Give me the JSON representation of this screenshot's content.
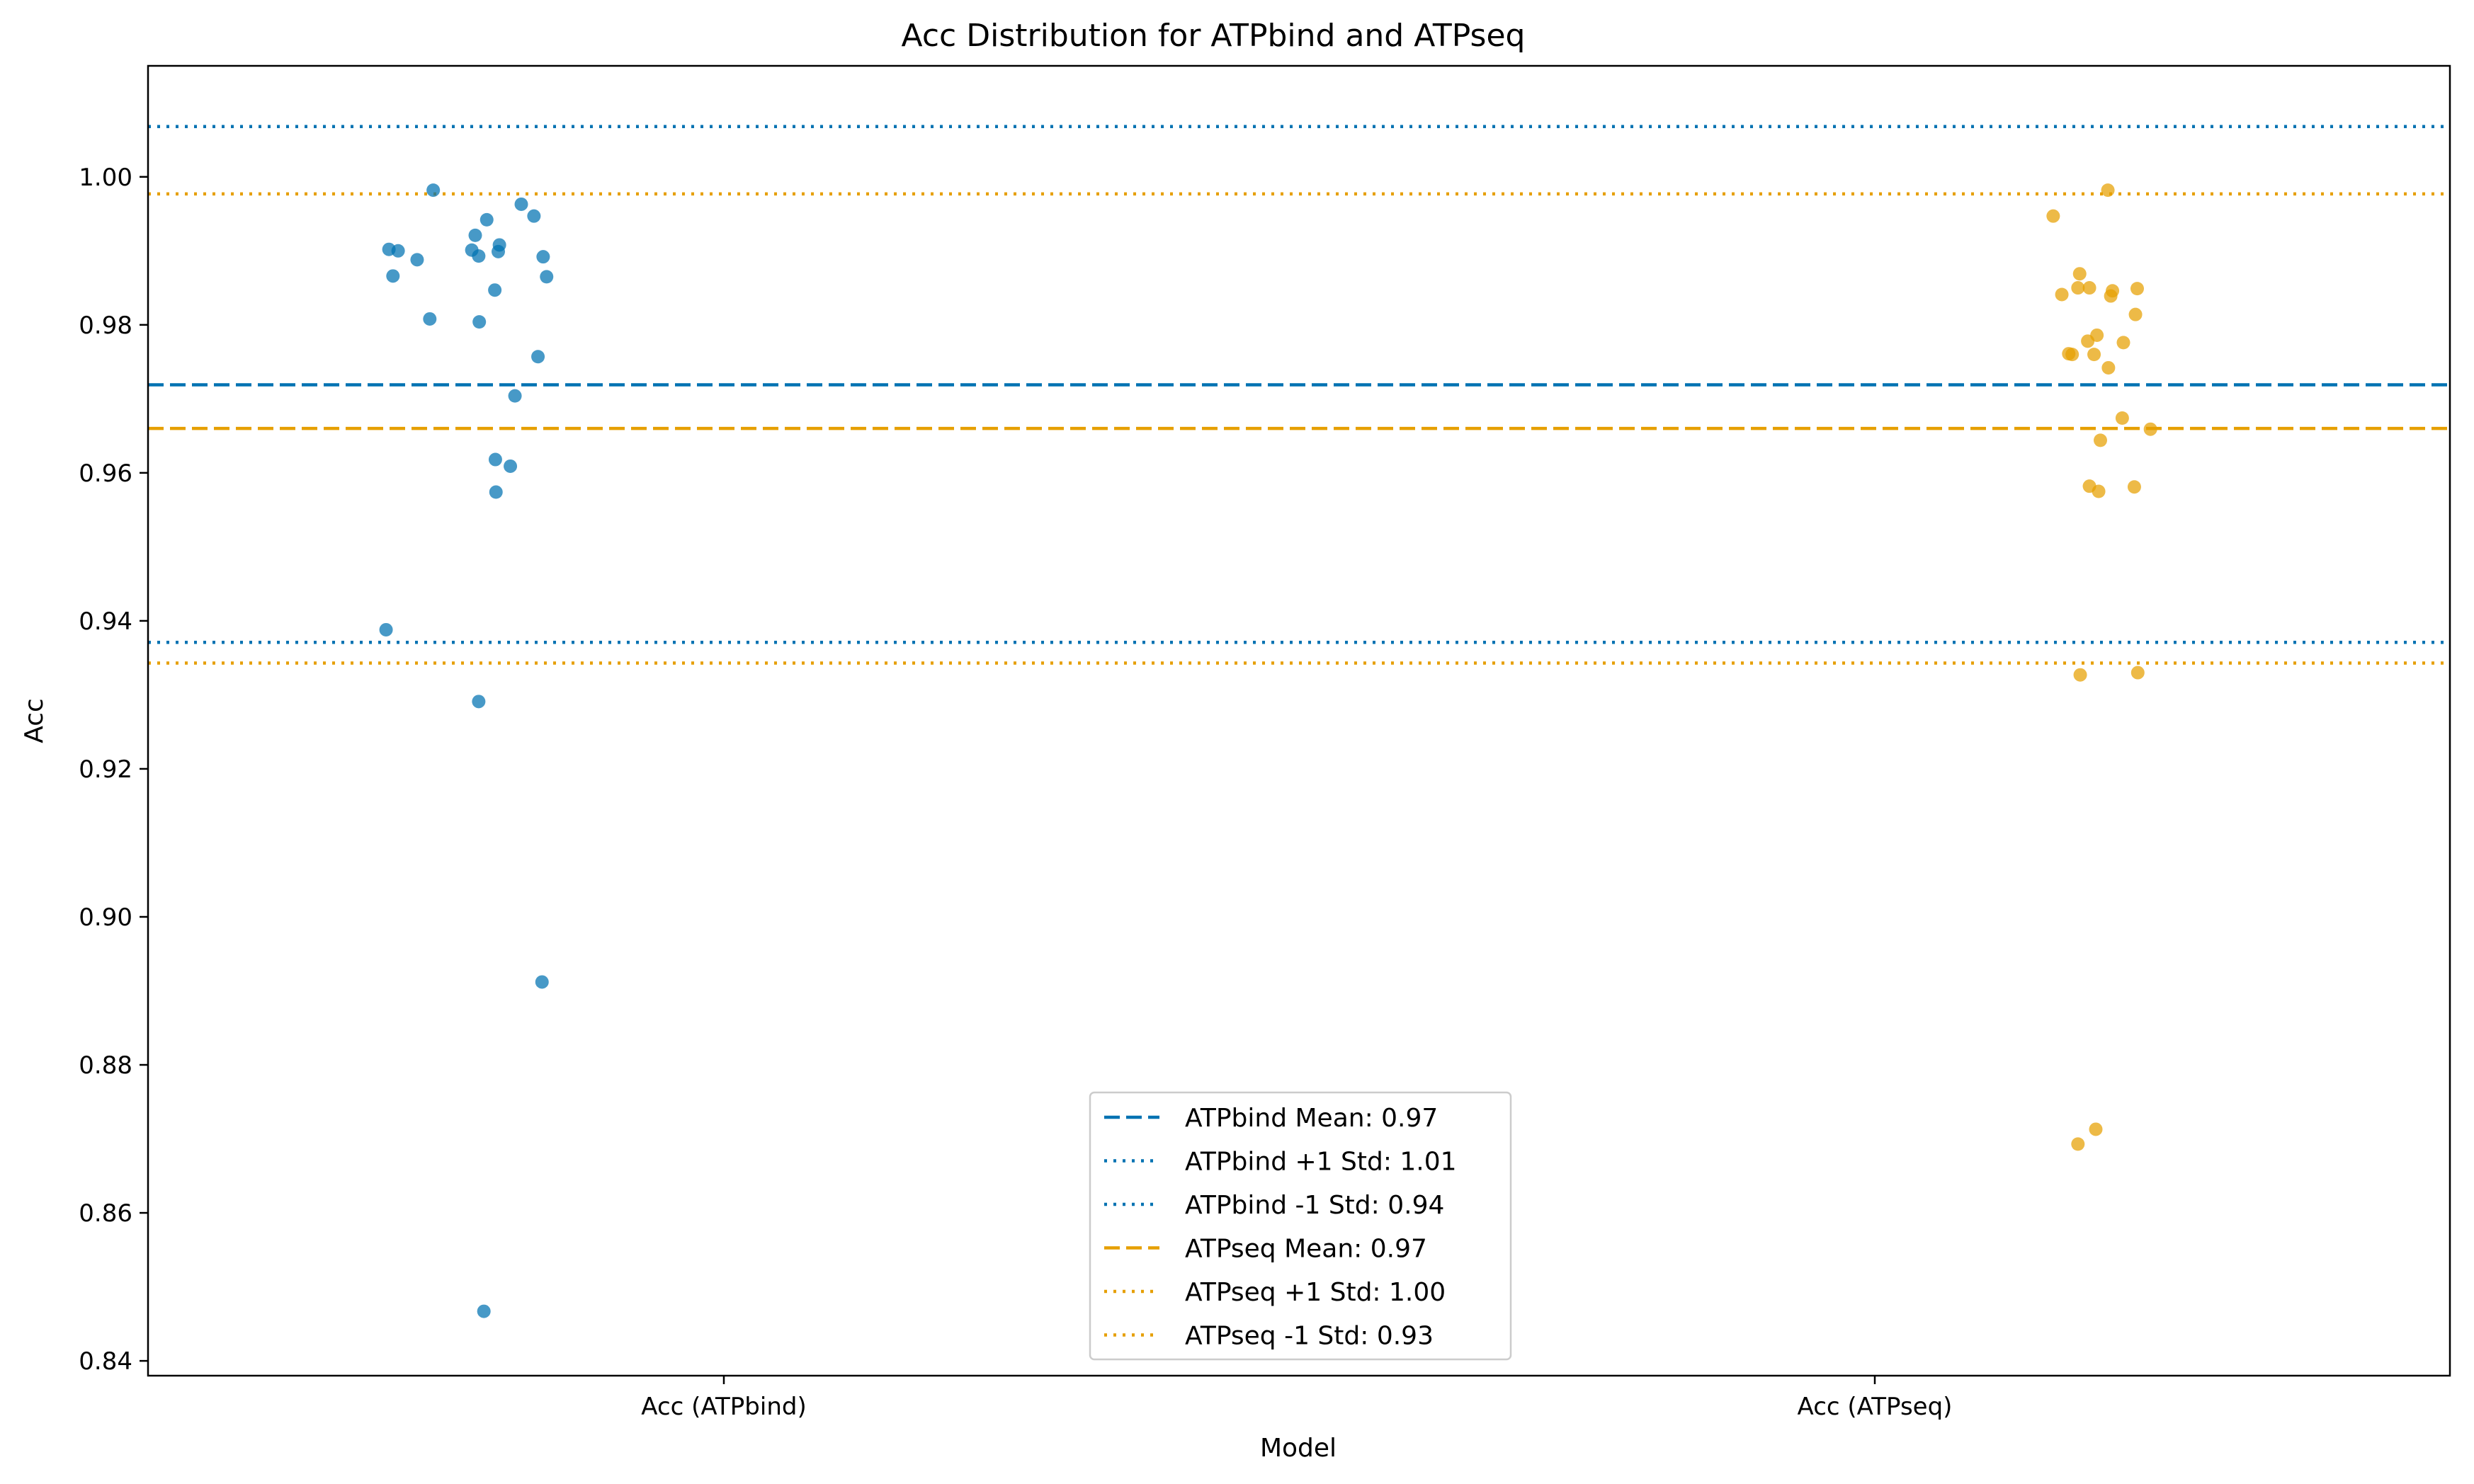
{
  "chart_data": {
    "type": "scatter",
    "title": "Acc Distribution for ATPbind and ATPseq",
    "xlabel": "Model",
    "ylabel": "Acc",
    "categories": [
      "Acc (ATPbind)",
      "Acc (ATPseq)"
    ],
    "ylim": [
      0.838,
      1.015
    ],
    "yticks": [
      0.84,
      0.86,
      0.88,
      0.9,
      0.92,
      0.94,
      0.96,
      0.98,
      1.0
    ],
    "ytick_labels": [
      "0.84",
      "0.86",
      "0.88",
      "0.90",
      "0.92",
      "0.94",
      "0.96",
      "0.98",
      "1.00"
    ],
    "grid": false,
    "legend_position": "bottom-center",
    "series": [
      {
        "category": "Acc (ATPbind)",
        "color": "#0072b2",
        "points": [
          {
            "x": -0.505,
            "y": 0.9982
          },
          {
            "x": -0.352,
            "y": 0.9963
          },
          {
            "x": -0.33,
            "y": 0.9947
          },
          {
            "x": -0.412,
            "y": 0.9942
          },
          {
            "x": -0.432,
            "y": 0.9921
          },
          {
            "x": -0.582,
            "y": 0.9902
          },
          {
            "x": -0.566,
            "y": 0.99
          },
          {
            "x": -0.438,
            "y": 0.9901
          },
          {
            "x": -0.39,
            "y": 0.9908
          },
          {
            "x": -0.392,
            "y": 0.9899
          },
          {
            "x": -0.426,
            "y": 0.9893
          },
          {
            "x": -0.533,
            "y": 0.9888
          },
          {
            "x": -0.314,
            "y": 0.9892
          },
          {
            "x": -0.575,
            "y": 0.9866
          },
          {
            "x": -0.308,
            "y": 0.9865
          },
          {
            "x": -0.398,
            "y": 0.9847
          },
          {
            "x": -0.511,
            "y": 0.9808
          },
          {
            "x": -0.425,
            "y": 0.9804
          },
          {
            "x": -0.323,
            "y": 0.9757
          },
          {
            "x": -0.363,
            "y": 0.9704
          },
          {
            "x": -0.397,
            "y": 0.9618
          },
          {
            "x": -0.371,
            "y": 0.9609
          },
          {
            "x": -0.396,
            "y": 0.9574
          },
          {
            "x": -0.587,
            "y": 0.9388
          },
          {
            "x": -0.426,
            "y": 0.9291
          },
          {
            "x": -0.316,
            "y": 0.8912
          },
          {
            "x": -0.417,
            "y": 0.8467
          }
        ]
      },
      {
        "category": "Acc (ATPseq)",
        "color": "#e69f00",
        "points": [
          {
            "x": 0.405,
            "y": 0.9982
          },
          {
            "x": 0.31,
            "y": 0.9947
          },
          {
            "x": 0.356,
            "y": 0.9869
          },
          {
            "x": 0.325,
            "y": 0.9841
          },
          {
            "x": 0.353,
            "y": 0.985
          },
          {
            "x": 0.373,
            "y": 0.985
          },
          {
            "x": 0.456,
            "y": 0.9849
          },
          {
            "x": 0.413,
            "y": 0.9846
          },
          {
            "x": 0.41,
            "y": 0.9839
          },
          {
            "x": 0.453,
            "y": 0.9814
          },
          {
            "x": 0.386,
            "y": 0.9786
          },
          {
            "x": 0.37,
            "y": 0.9778
          },
          {
            "x": 0.432,
            "y": 0.9776
          },
          {
            "x": 0.337,
            "y": 0.9761
          },
          {
            "x": 0.343,
            "y": 0.976
          },
          {
            "x": 0.381,
            "y": 0.976
          },
          {
            "x": 0.406,
            "y": 0.9742
          },
          {
            "x": 0.43,
            "y": 0.9674
          },
          {
            "x": 0.479,
            "y": 0.9659
          },
          {
            "x": 0.392,
            "y": 0.9644
          },
          {
            "x": 0.373,
            "y": 0.9582
          },
          {
            "x": 0.451,
            "y": 0.9581
          },
          {
            "x": 0.389,
            "y": 0.9575
          },
          {
            "x": 0.357,
            "y": 0.9327
          },
          {
            "x": 0.457,
            "y": 0.933
          },
          {
            "x": 0.384,
            "y": 0.8713
          },
          {
            "x": 0.353,
            "y": 0.8693
          }
        ]
      }
    ],
    "reference_lines": [
      {
        "label": "ATPbind Mean: 0.97",
        "y": 0.9719,
        "color": "#0072b2",
        "style": "dashed"
      },
      {
        "label": "ATPbind +1 Std: 1.01",
        "y": 1.0068,
        "color": "#0072b2",
        "style": "dotted"
      },
      {
        "label": "ATPbind -1 Std: 0.94",
        "y": 0.9371,
        "color": "#0072b2",
        "style": "dotted"
      },
      {
        "label": "ATPseq Mean: 0.97",
        "y": 0.966,
        "color": "#e69f00",
        "style": "dashed"
      },
      {
        "label": "ATPseq +1 Std: 1.00",
        "y": 0.9977,
        "color": "#e69f00",
        "style": "dotted"
      },
      {
        "label": "ATPseq -1 Std: 0.93",
        "y": 0.9343,
        "color": "#e69f00",
        "style": "dotted"
      }
    ]
  }
}
